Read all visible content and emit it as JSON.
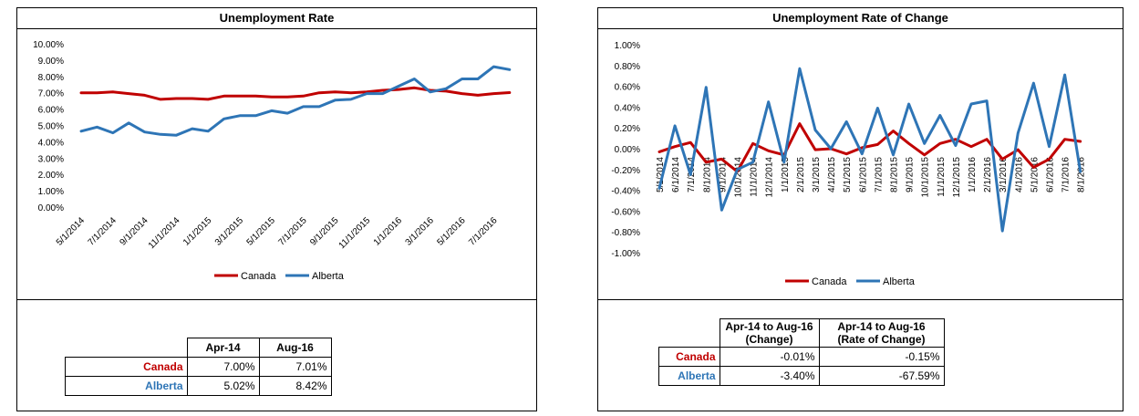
{
  "left": {
    "title": "Unemployment Rate",
    "chart_data": {
      "type": "line",
      "title": "Unemployment Rate",
      "x": [
        "5/1/2014",
        "6/1/2014",
        "7/1/2014",
        "8/1/2014",
        "9/1/2014",
        "10/1/2014",
        "11/1/2014",
        "12/1/2014",
        "1/1/2015",
        "2/1/2015",
        "3/1/2015",
        "4/1/2015",
        "5/1/2015",
        "6/1/2015",
        "7/1/2015",
        "8/1/2015",
        "9/1/2015",
        "10/1/2015",
        "11/1/2015",
        "12/1/2015",
        "1/1/2016",
        "2/1/2016",
        "3/1/2016",
        "4/1/2016",
        "5/1/2016",
        "6/1/2016",
        "7/1/2016",
        "8/1/2016"
      ],
      "x_tick_labels": [
        "5/1/2014",
        "7/1/2014",
        "9/1/2014",
        "11/1/2014",
        "1/1/2015",
        "3/1/2015",
        "5/1/2015",
        "7/1/2015",
        "9/1/2015",
        "11/1/2015",
        "1/1/2016",
        "3/1/2016",
        "5/1/2016",
        "7/1/2016"
      ],
      "y_tick_labels": [
        "0.00%",
        "1.00%",
        "2.00%",
        "3.00%",
        "4.00%",
        "5.00%",
        "6.00%",
        "7.00%",
        "8.00%",
        "9.00%",
        "10.00%"
      ],
      "ylim": [
        0,
        10
      ],
      "series": [
        {
          "name": "Canada",
          "color": "#c00000",
          "values": [
            7.0,
            7.0,
            7.05,
            6.95,
            6.85,
            6.6,
            6.65,
            6.65,
            6.6,
            6.8,
            6.8,
            6.8,
            6.75,
            6.75,
            6.8,
            7.0,
            7.05,
            7.0,
            7.05,
            7.15,
            7.2,
            7.3,
            7.15,
            7.1,
            6.95,
            6.85,
            6.95,
            7.01
          ]
        },
        {
          "name": "Alberta",
          "color": "#2e75b6",
          "values": [
            4.65,
            4.9,
            4.55,
            5.15,
            4.6,
            4.45,
            4.4,
            4.8,
            4.65,
            5.4,
            5.6,
            5.6,
            5.9,
            5.75,
            6.15,
            6.15,
            6.55,
            6.6,
            6.95,
            6.95,
            7.4,
            7.85,
            7.05,
            7.25,
            7.85,
            7.85,
            8.6,
            8.42
          ]
        }
      ],
      "legend": "bottom",
      "grid": false
    },
    "table": {
      "headers": [
        "Apr-14",
        "Aug-16"
      ],
      "rows": [
        {
          "label": "Canada",
          "values": [
            "7.00%",
            "7.01%"
          ]
        },
        {
          "label": "Alberta",
          "values": [
            "5.02%",
            "8.42%"
          ]
        }
      ]
    }
  },
  "right": {
    "title": "Unemployment Rate of Change",
    "chart_data": {
      "type": "line",
      "title": "Unemployment Rate of Change",
      "x": [
        "5/1/2014",
        "6/1/2014",
        "7/1/2014",
        "8/1/2014",
        "9/1/2014",
        "10/1/2014",
        "11/1/2014",
        "12/1/2014",
        "1/1/2015",
        "2/1/2015",
        "3/1/2015",
        "4/1/2015",
        "5/1/2015",
        "6/1/2015",
        "7/1/2015",
        "8/1/2015",
        "9/1/2015",
        "10/1/2015",
        "11/1/2015",
        "12/1/2015",
        "1/1/2016",
        "2/1/2016",
        "3/1/2016",
        "4/1/2016",
        "5/1/2016",
        "6/1/2016",
        "7/1/2016",
        "8/1/2016"
      ],
      "y_tick_labels": [
        "-1.00%",
        "-0.80%",
        "-0.60%",
        "-0.40%",
        "-0.20%",
        "0.00%",
        "0.20%",
        "0.40%",
        "0.60%",
        "0.80%",
        "1.00%"
      ],
      "ylim": [
        -1,
        1
      ],
      "series": [
        {
          "name": "Canada",
          "color": "#c00000",
          "values": [
            -0.03,
            0.02,
            0.06,
            -0.13,
            -0.1,
            -0.22,
            0.05,
            -0.02,
            -0.06,
            0.24,
            -0.01,
            0.0,
            -0.05,
            0.01,
            0.04,
            0.17,
            0.05,
            -0.06,
            0.05,
            0.09,
            0.02,
            0.09,
            -0.1,
            -0.01,
            -0.18,
            -0.1,
            0.09,
            0.07
          ]
        },
        {
          "name": "Alberta",
          "color": "#2e75b6",
          "values": [
            -0.38,
            0.22,
            -0.25,
            0.59,
            -0.59,
            -0.2,
            -0.13,
            0.45,
            -0.13,
            0.77,
            0.18,
            0.0,
            0.26,
            -0.05,
            0.39,
            -0.06,
            0.43,
            0.05,
            0.32,
            0.03,
            0.43,
            0.46,
            -0.79,
            0.15,
            0.63,
            0.02,
            0.71,
            -0.22
          ]
        }
      ],
      "legend": "bottom",
      "grid": false
    },
    "table": {
      "headers": [
        "Apr-14 to Aug-16 (Change)",
        "Apr-14 to Aug-16 (Rate of Change)"
      ],
      "header_lines": [
        [
          "Apr-14 to Aug-16",
          "(Change)"
        ],
        [
          "Apr-14 to Aug-16",
          "(Rate of Change)"
        ]
      ],
      "rows": [
        {
          "label": "Canada",
          "values": [
            "-0.01%",
            "-0.15%"
          ]
        },
        {
          "label": "Alberta",
          "values": [
            "-3.40%",
            "-67.59%"
          ]
        }
      ]
    }
  }
}
